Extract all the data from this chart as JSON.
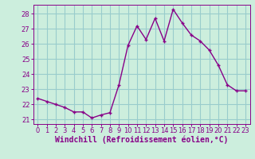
{
  "x": [
    0,
    1,
    2,
    3,
    4,
    5,
    6,
    7,
    8,
    9,
    10,
    11,
    12,
    13,
    14,
    15,
    16,
    17,
    18,
    19,
    20,
    21,
    22,
    23
  ],
  "y": [
    22.4,
    22.2,
    22.0,
    21.8,
    21.5,
    21.5,
    21.1,
    21.3,
    21.45,
    23.3,
    25.9,
    27.2,
    26.3,
    27.7,
    26.2,
    28.3,
    27.4,
    26.6,
    26.2,
    25.6,
    24.6,
    23.3,
    22.9,
    22.9
  ],
  "line_color": "#880088",
  "marker": "+",
  "marker_size": 3.5,
  "linewidth": 1.0,
  "bg_color": "#cceedd",
  "grid_color": "#99cccc",
  "xlabel": "Windchill (Refroidissement éolien,°C)",
  "xlabel_color": "#880088",
  "xlim": [
    -0.5,
    23.5
  ],
  "ylim": [
    20.7,
    28.6
  ],
  "yticks": [
    21,
    22,
    23,
    24,
    25,
    26,
    27,
    28
  ],
  "xticks": [
    0,
    1,
    2,
    3,
    4,
    5,
    6,
    7,
    8,
    9,
    10,
    11,
    12,
    13,
    14,
    15,
    16,
    17,
    18,
    19,
    20,
    21,
    22,
    23
  ],
  "tick_color": "#880088",
  "tick_fontsize": 6.0,
  "xlabel_fontsize": 7.0
}
